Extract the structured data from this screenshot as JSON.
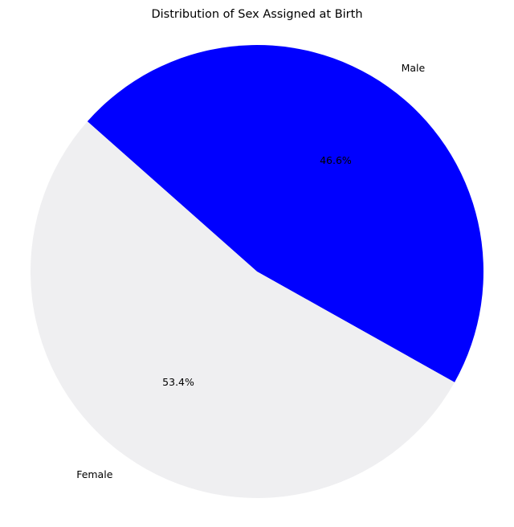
{
  "chart_data": {
    "type": "pie",
    "title": "Distribution of Sex Assigned at Birth",
    "categories": [
      "Male",
      "Female"
    ],
    "values": [
      46.6,
      53.4
    ],
    "value_labels": [
      "46.6%",
      "53.4%"
    ],
    "colors": [
      "#0000ff",
      "#efeff1"
    ],
    "legend": "none",
    "grid": false
  }
}
